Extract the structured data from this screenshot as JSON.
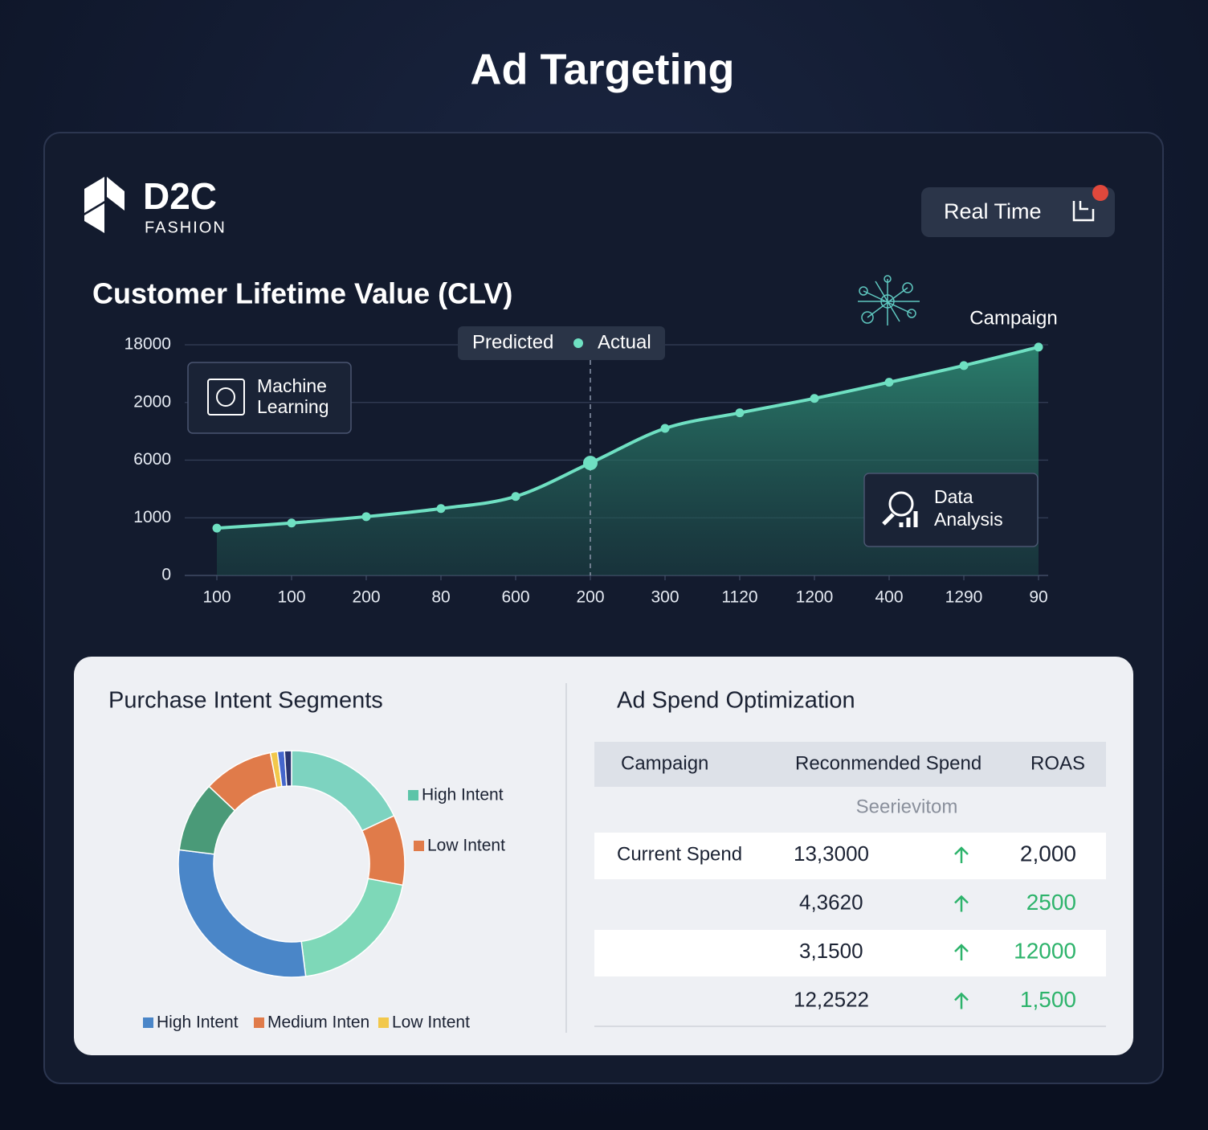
{
  "header": {
    "title": "Ad Targeting"
  },
  "brand": {
    "name": "D2C",
    "tagline": "FASHION"
  },
  "button": {
    "label": "Real Time"
  },
  "chart_data": [
    {
      "type": "line",
      "title": "Customer Lifetime Value (CLV)",
      "categories": [
        "100",
        "100",
        "200",
        "80",
        "600",
        "200",
        "300",
        "1120",
        "1200",
        "400",
        "1290",
        "90"
      ],
      "series": [
        {
          "name": "Actual",
          "color": "#6fe0c2",
          "values": [
            0.82,
            0.91,
            1.02,
            1.16,
            1.37,
            1.95,
            2.55,
            2.82,
            3.07,
            3.35,
            3.64,
            3.96
          ]
        }
      ],
      "predicted_label": "Predicted",
      "ylim": [
        0,
        4
      ],
      "yticks": [
        0,
        1,
        2,
        3,
        4
      ],
      "y_labels": [
        "0",
        "1000",
        "6000",
        "2000",
        "18000"
      ],
      "grid": true,
      "highlight": 5,
      "annotations": [
        "Campaign",
        "Machine Learning",
        "Data Analysis"
      ]
    },
    {
      "type": "pie",
      "title": "Purchase Intent Segments",
      "values": [
        18,
        10,
        20,
        29,
        10,
        10,
        1,
        1,
        1
      ],
      "colors": [
        "#7dd3c0",
        "#e07b4a",
        "#7ed8b8",
        "#4a86c8",
        "#4a9a78",
        "#e07b4a",
        "#f2c84b",
        "#4466cc",
        "#2a3570"
      ],
      "legend": [
        {
          "name": "High Intent",
          "color": "#5cc4a8"
        },
        {
          "name": "Low Intent",
          "color": "#e07b4a"
        },
        {
          "name": "High Intent",
          "color": "#4a86c8"
        },
        {
          "name": "Medium Inten",
          "color": "#e07b4a"
        },
        {
          "name": "Low Intent",
          "color": "#f2c84b"
        }
      ]
    }
  ],
  "table": {
    "title": "Ad Spend Optimization",
    "header": [
      "Campaign",
      "Reconmended Spend",
      "ROAS"
    ],
    "subheader": "Seerievitom",
    "rows": [
      [
        "Current Spend",
        "13,3000",
        "2,000"
      ],
      [
        null,
        "4,3620",
        "2500"
      ],
      [
        null,
        "3,1500",
        "12000"
      ],
      [
        null,
        "12,2522",
        "1,500"
      ]
    ]
  }
}
